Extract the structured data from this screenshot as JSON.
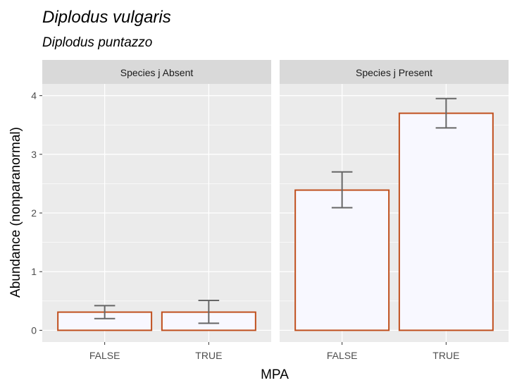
{
  "chart_data": {
    "type": "bar",
    "title": "Diplodus vulgaris",
    "subtitle": "Diplodus puntazzo",
    "xlabel": "MPA",
    "ylabel": "Abundance (nonparanormal)",
    "ylim": [
      -0.2,
      4.2
    ],
    "yticks": [
      "0",
      "1",
      "2",
      "3",
      "4"
    ],
    "categories": [
      "FALSE",
      "TRUE"
    ],
    "facets": [
      {
        "label": "Species j Absent",
        "values": [
          0.31,
          0.31
        ],
        "error_low": [
          0.2,
          0.12
        ],
        "error_high": [
          0.42,
          0.51
        ]
      },
      {
        "label": "Species j Present",
        "values": [
          2.39,
          3.7
        ],
        "error_low": [
          2.09,
          3.45
        ],
        "error_high": [
          2.7,
          3.95
        ]
      }
    ],
    "grid": true,
    "colors": {
      "panel_bg": "#ebebeb",
      "strip_bg": "#d9d9d9",
      "grid": "#ffffff",
      "bar_fill": "#f8f8ff",
      "bar_stroke": "#c0501e",
      "errorbar": "#666666",
      "tick_text": "#4d4d4d"
    }
  }
}
